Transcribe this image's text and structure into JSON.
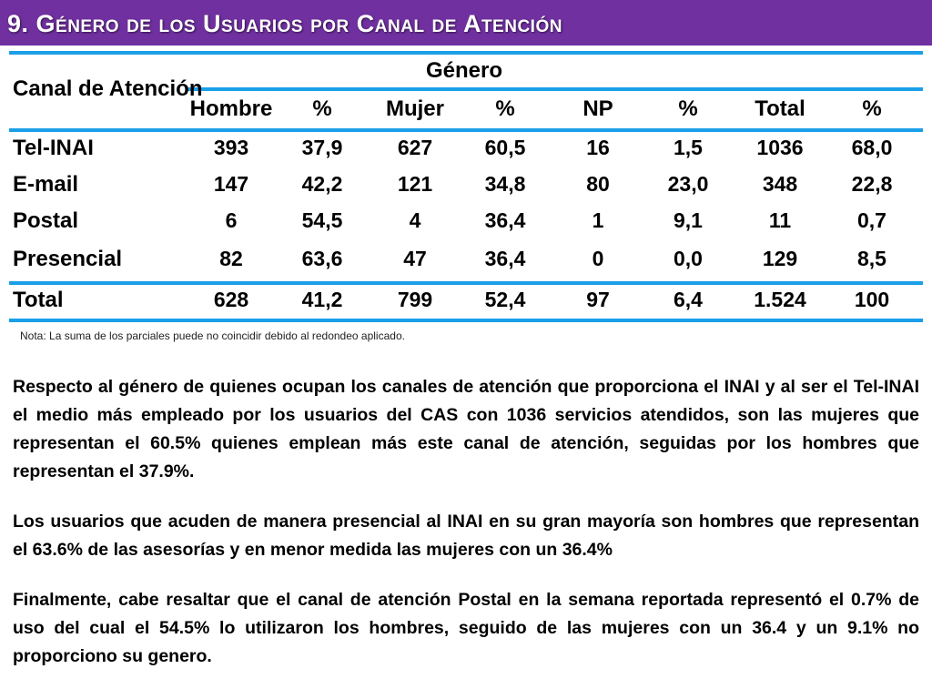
{
  "title": "9. Género de los Usuarios por Canal de Atención",
  "table": {
    "row_header": "Canal de Atención",
    "group_header": "Género",
    "columns": [
      "Hombre",
      "%",
      "Mujer",
      "%",
      "NP",
      "%",
      "Total",
      "%"
    ],
    "rows": [
      {
        "label": "Tel-INAI",
        "values": [
          "393",
          "37,9",
          "627",
          "60,5",
          "16",
          "1,5",
          "1036",
          "68,0"
        ]
      },
      {
        "label": "E-mail",
        "values": [
          "147",
          "42,2",
          "121",
          "34,8",
          "80",
          "23,0",
          "348",
          "22,8"
        ]
      },
      {
        "label": "Postal",
        "values": [
          "6",
          "54,5",
          "4",
          "36,4",
          "1",
          "9,1",
          "11",
          "0,7"
        ]
      },
      {
        "label": "Presencial",
        "values": [
          "82",
          "63,6",
          "47",
          "36,4",
          "0",
          "0,0",
          "129",
          "8,5"
        ]
      }
    ],
    "total": {
      "label": "Total",
      "values": [
        "628",
        "41,2",
        "799",
        "52,4",
        "97",
        "6,4",
        "1.524",
        "100"
      ]
    }
  },
  "note": "Nota: La suma de los parciales puede no coincidir debido al redondeo aplicado.",
  "paragraphs": [
    "Respecto al género de quienes ocupan los canales de atención que proporciona el INAI y al ser el Tel-INAI el medio más empleado por los usuarios del CAS con 1036 servicios atendidos, son las mujeres que representan el 60.5% quienes emplean más este canal de atención, seguidas por los hombres que representan el 37.9%.",
    "Los usuarios que acuden de manera presencial al INAI en su gran mayoría son hombres que representan el 63.6% de las asesorías y en menor medida las mujeres con un 36.4%",
    "Finalmente, cabe resaltar que el canal de atención Postal en la semana reportada representó el 0.7% de uso del cual el 54.5% lo utilizaron los hombres, seguido de las mujeres con un 36.4 y un 9.1% no proporciono su genero."
  ],
  "colors": {
    "accent": "#7030a0",
    "rule": "#1a9fe8"
  }
}
